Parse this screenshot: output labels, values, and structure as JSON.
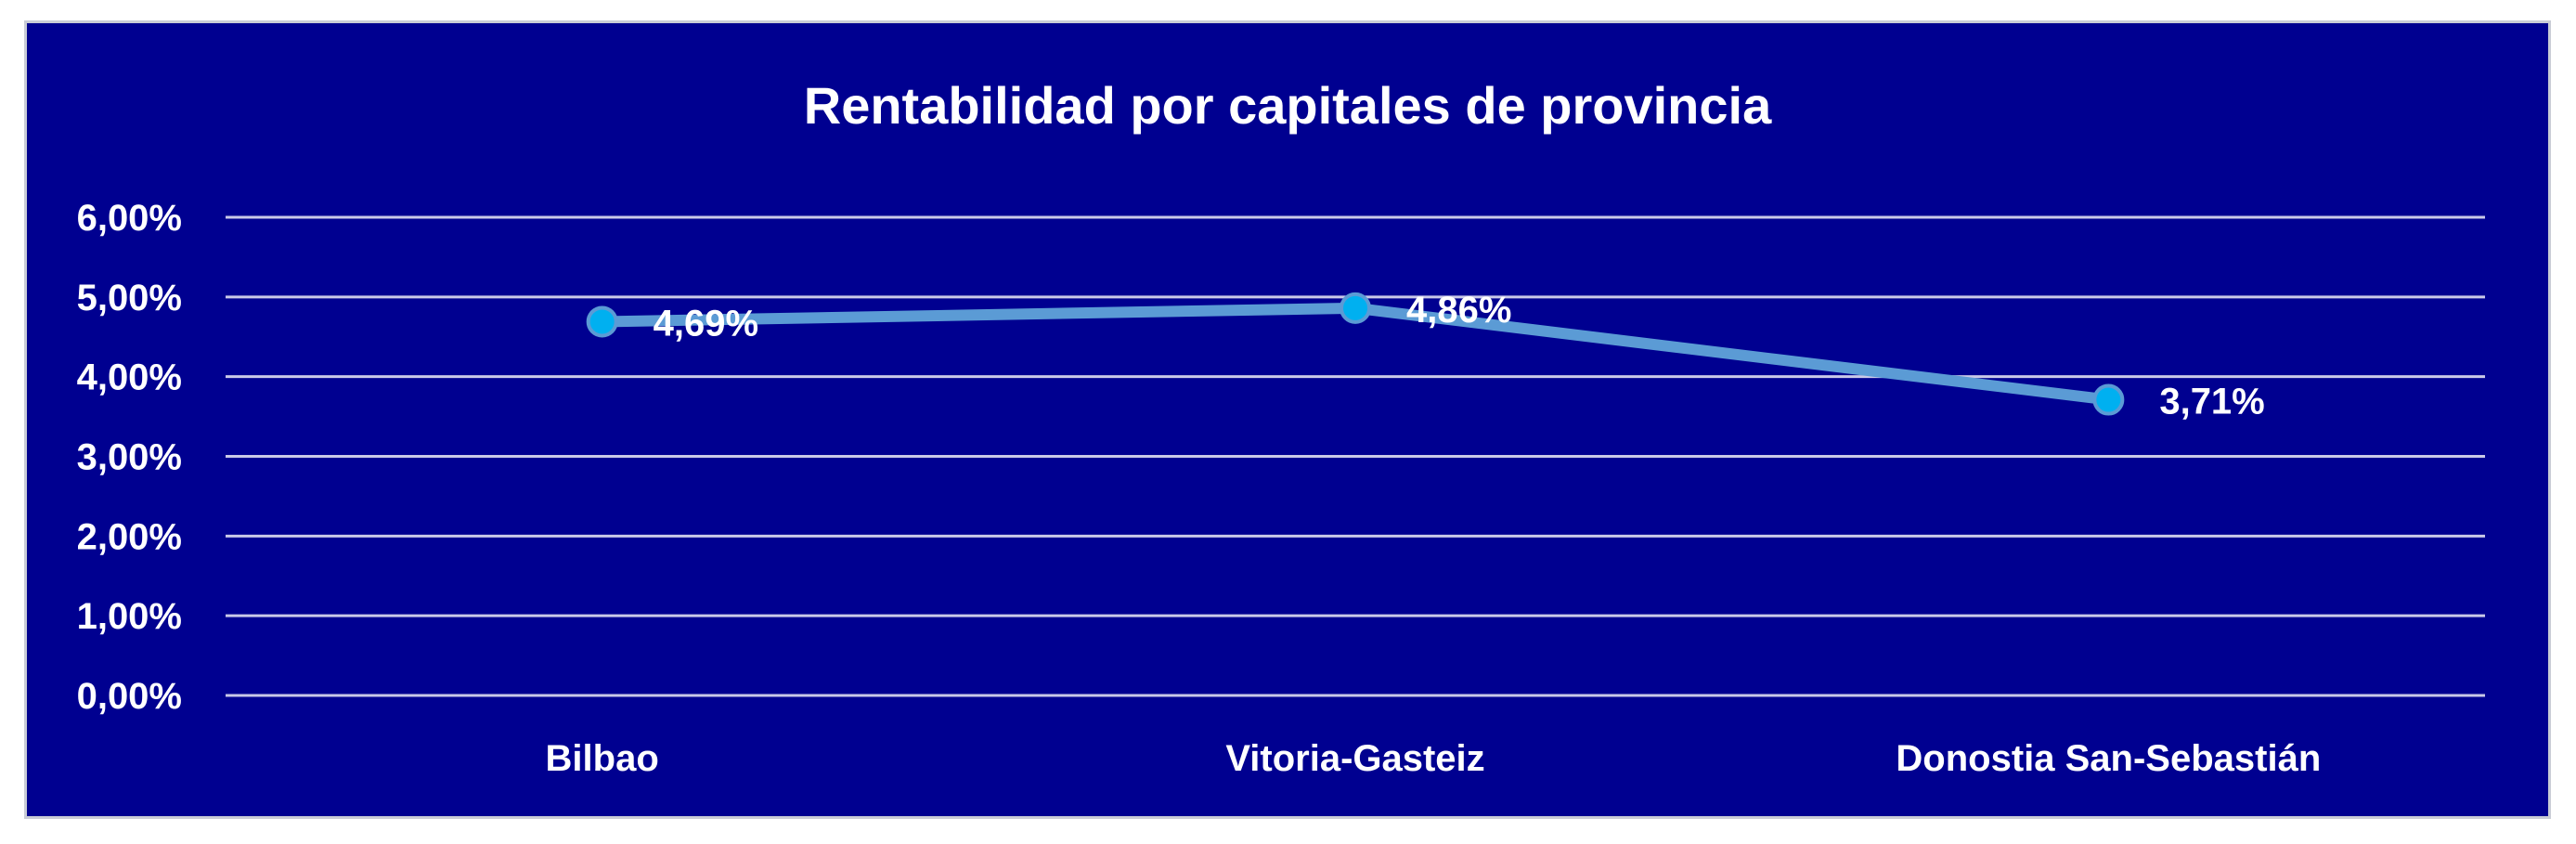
{
  "chart_data": {
    "type": "line",
    "title": "Rentabilidad por capitales de provincia",
    "xlabel": "",
    "ylabel": "",
    "categories": [
      "Bilbao",
      "Vitoria-Gasteiz",
      "Donostia San-Sebastián"
    ],
    "series": [
      {
        "values": [
          4.69,
          4.86,
          3.71
        ],
        "data_labels": [
          "4,69%",
          "4,86%",
          "3,71%"
        ]
      }
    ],
    "ylim": [
      0,
      6
    ],
    "y_ticks": [
      0,
      1,
      2,
      3,
      4,
      5,
      6
    ],
    "y_tick_labels": [
      "0,00%",
      "1,00%",
      "2,00%",
      "3,00%",
      "4,00%",
      "5,00%",
      "6,00%"
    ],
    "grid": true,
    "legend": "none"
  },
  "colors": {
    "background": "#000090",
    "border": "#c9ccd6",
    "gridline": "#c9c9e8",
    "line": "#5b9bd5",
    "marker_fill": "#00b0f0",
    "marker_stroke": "#5b9bd5",
    "text": "#ffffff"
  }
}
